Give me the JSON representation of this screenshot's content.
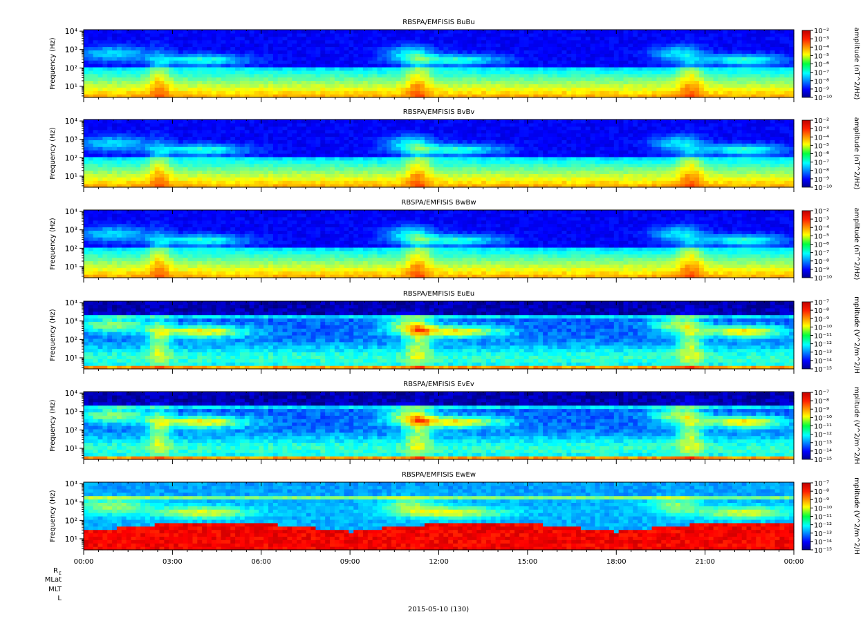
{
  "chart_data": [
    {
      "type": "heatmap",
      "title": "RBSPA/EMFISIS  BuBu",
      "ylabel": "Frequency (Hz)",
      "yscale": "log",
      "yticks": [
        "10¹",
        "10²",
        "10³",
        "10⁴"
      ],
      "ylim": [
        2.5,
        12000
      ],
      "colorbar_label": "amplitude (nT^2/Hz)",
      "colorbar_ticks": [
        "10⁻²",
        "10⁻³",
        "10⁻⁴",
        "10⁻⁵",
        "10⁻⁶",
        "10⁻⁷",
        "10⁻⁸",
        "10⁻⁹",
        "10⁻¹⁰"
      ],
      "colorbar_range": [
        -10,
        -2
      ],
      "spectrum_kind": "magnetic"
    },
    {
      "type": "heatmap",
      "title": "RBSPA/EMFISIS  BvBv",
      "ylabel": "Frequency (Hz)",
      "yscale": "log",
      "yticks": [
        "10¹",
        "10²",
        "10³",
        "10⁴"
      ],
      "ylim": [
        2.5,
        12000
      ],
      "colorbar_label": "amplitude (nT^2/Hz)",
      "colorbar_ticks": [
        "10⁻²",
        "10⁻³",
        "10⁻⁴",
        "10⁻⁵",
        "10⁻⁶",
        "10⁻⁷",
        "10⁻⁸",
        "10⁻⁹",
        "10⁻¹⁰"
      ],
      "colorbar_range": [
        -10,
        -2
      ],
      "spectrum_kind": "magnetic"
    },
    {
      "type": "heatmap",
      "title": "RBSPA/EMFISIS  BwBw",
      "ylabel": "Frequency (Hz)",
      "yscale": "log",
      "yticks": [
        "10¹",
        "10²",
        "10³",
        "10⁴"
      ],
      "ylim": [
        2.5,
        12000
      ],
      "colorbar_label": "amplitude (nT^2/Hz)",
      "colorbar_ticks": [
        "10⁻²",
        "10⁻³",
        "10⁻⁴",
        "10⁻⁵",
        "10⁻⁶",
        "10⁻⁷",
        "10⁻⁸",
        "10⁻⁹",
        "10⁻¹⁰"
      ],
      "colorbar_range": [
        -10,
        -2
      ],
      "spectrum_kind": "magnetic"
    },
    {
      "type": "heatmap",
      "title": "RBSPA/EMFISIS  EuEu",
      "ylabel": "Frequency (Hz)",
      "yscale": "log",
      "yticks": [
        "10¹",
        "10²",
        "10³",
        "10⁴"
      ],
      "ylim": [
        2.5,
        12000
      ],
      "colorbar_label": "mplitude (V^2/m^2/H",
      "colorbar_ticks": [
        "10⁻⁷",
        "10⁻⁸",
        "10⁻⁹",
        "10⁻¹⁰",
        "10⁻¹¹",
        "10⁻¹²",
        "10⁻¹³",
        "10⁻¹⁴",
        "10⁻¹⁵"
      ],
      "colorbar_range": [
        -15,
        -7
      ],
      "spectrum_kind": "electric"
    },
    {
      "type": "heatmap",
      "title": "RBSPA/EMFISIS  EvEv",
      "ylabel": "Frequency (Hz)",
      "yscale": "log",
      "yticks": [
        "10¹",
        "10²",
        "10³",
        "10⁴"
      ],
      "ylim": [
        2.5,
        12000
      ],
      "colorbar_label": "mplitude (V^2/m^2/H",
      "colorbar_ticks": [
        "10⁻⁷",
        "10⁻⁸",
        "10⁻⁹",
        "10⁻¹⁰",
        "10⁻¹¹",
        "10⁻¹²",
        "10⁻¹³",
        "10⁻¹⁴",
        "10⁻¹⁵"
      ],
      "colorbar_range": [
        -15,
        -7
      ],
      "spectrum_kind": "electric"
    },
    {
      "type": "heatmap",
      "title": "RBSPA/EMFISIS  EwEw",
      "ylabel": "Frequency (Hz)",
      "yscale": "log",
      "yticks": [
        "10¹",
        "10²",
        "10³",
        "10⁴"
      ],
      "ylim": [
        2.5,
        12000
      ],
      "colorbar_label": "mplitude (V^2/m^2/H",
      "colorbar_ticks": [
        "10⁻⁷",
        "10⁻⁸",
        "10⁻⁹",
        "10⁻¹⁰",
        "10⁻¹¹",
        "10⁻¹²",
        "10⁻¹³",
        "10⁻¹⁴",
        "10⁻¹⁵"
      ],
      "colorbar_range": [
        -15,
        -7
      ],
      "spectrum_kind": "electric_w"
    }
  ],
  "xaxis": {
    "ticks": [
      "00:00",
      "03:00",
      "06:00",
      "09:00",
      "12:00",
      "15:00",
      "18:00",
      "21:00",
      "00:00"
    ],
    "xlim_hours": [
      0,
      24
    ],
    "ephemeris_labels": [
      "R",
      "MLat",
      "MLT",
      "L"
    ],
    "ephemeris_subscript": "E",
    "date_label": "2015-05-10 (130)"
  }
}
